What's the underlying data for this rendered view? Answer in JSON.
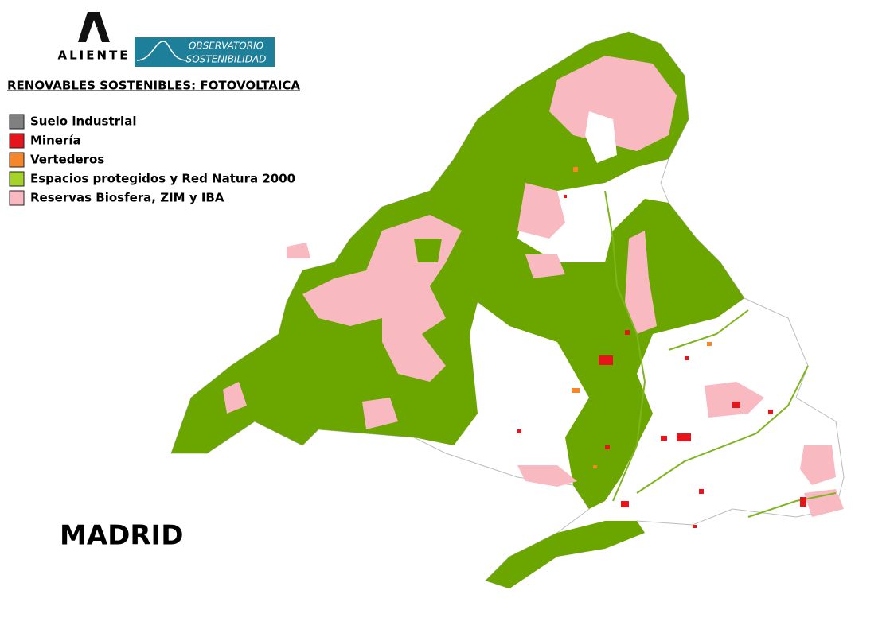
{
  "logo": {
    "name": "ALIENTE",
    "badge_line1": "OBSERVATORIO",
    "badge_line2": "SOSTENIBILIDAD"
  },
  "title": "RENOVABLES SOSTENIBLES: FOTOVOLTAICA",
  "legend": [
    {
      "label": "Suelo industrial",
      "color": "#808080"
    },
    {
      "label": "Minería",
      "color": "#e8141c"
    },
    {
      "label": "Vertederos",
      "color": "#f7862a"
    },
    {
      "label": "Espacios protegidos y Red Natura 2000",
      "color": "#a6d32a"
    },
    {
      "label": "Reservas Biosfera, ZIM y IBA",
      "color": "#f9b9c0"
    }
  ],
  "region": "MADRID"
}
